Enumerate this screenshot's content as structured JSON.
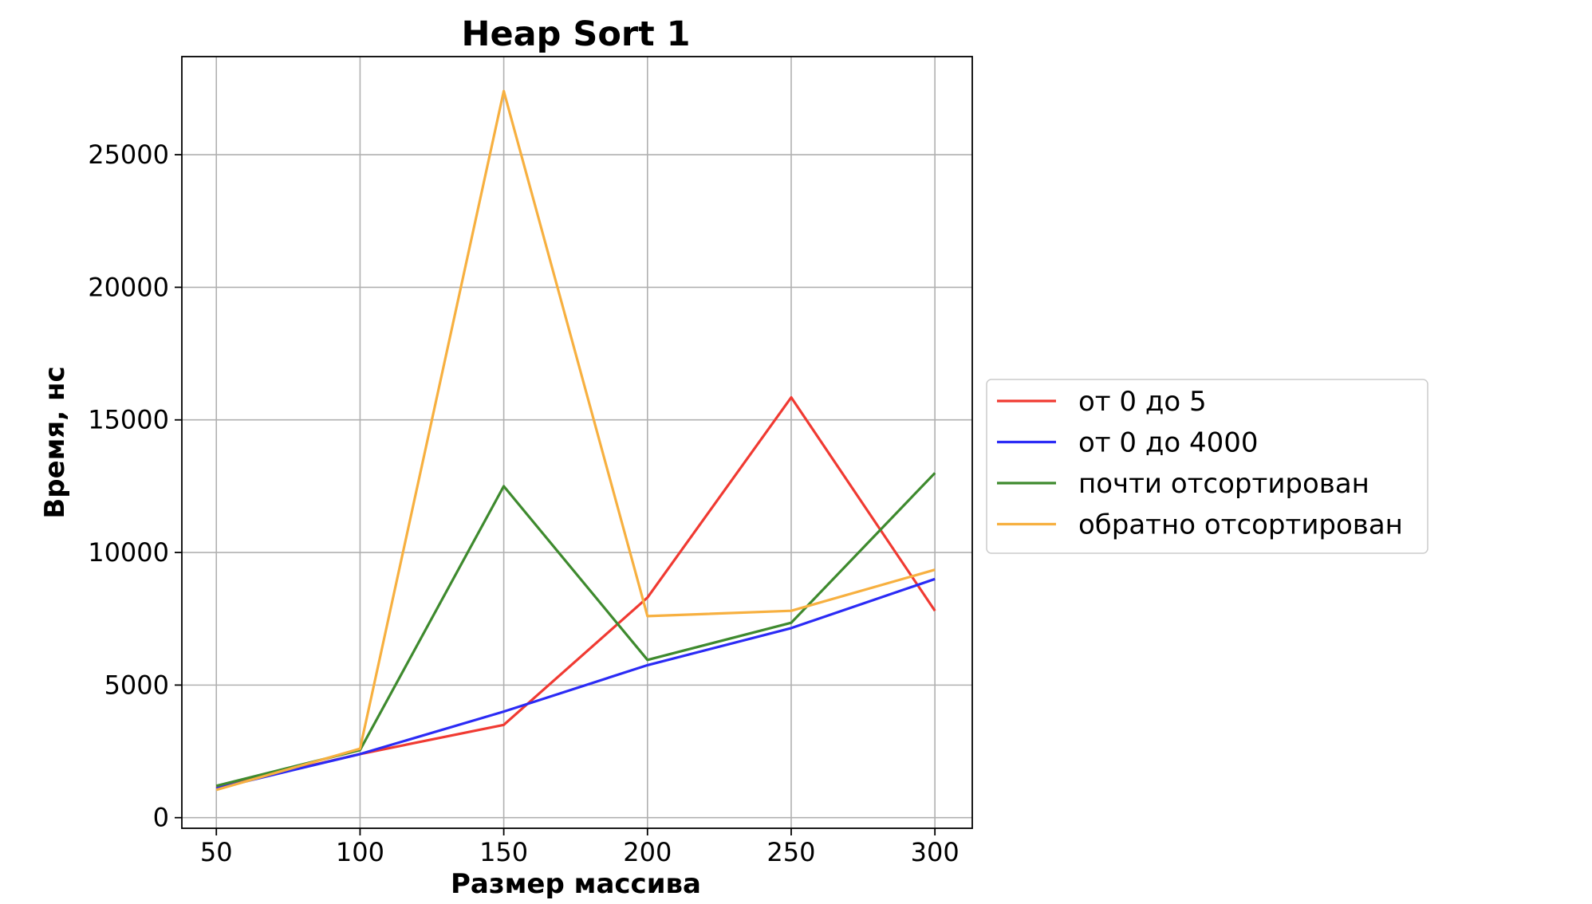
{
  "chart_data": {
    "type": "line",
    "title": "Heap Sort 1",
    "xlabel": "Размер массива",
    "ylabel": "Время, нс",
    "x": [
      50,
      100,
      150,
      200,
      250,
      300
    ],
    "xticks": [
      "50",
      "100",
      "150",
      "200",
      "250",
      "300"
    ],
    "yticks": [
      "0",
      "5000",
      "10000",
      "15000",
      "20000",
      "25000"
    ],
    "ytick_values": [
      0,
      5000,
      10000,
      15000,
      20000,
      25000
    ],
    "xlim": [
      38,
      313
    ],
    "ylim": [
      -400,
      28700
    ],
    "grid": true,
    "legend_position": "right, outside plot area",
    "series": [
      {
        "name": "от 0 до 5",
        "color": "#f03a32",
        "values": [
          1150,
          2400,
          3500,
          8300,
          15850,
          7800
        ]
      },
      {
        "name": "от 0 до 4000",
        "color": "#2b2bf5",
        "values": [
          1100,
          2400,
          4000,
          5750,
          7150,
          9000
        ]
      },
      {
        "name": "почти отсортирован",
        "color": "#3e8a2e",
        "values": [
          1200,
          2550,
          12500,
          5950,
          7350,
          13000
        ]
      },
      {
        "name": "обратно отсортирован",
        "color": "#f7b040",
        "values": [
          1050,
          2600,
          27400,
          7600,
          7800,
          9350
        ]
      }
    ]
  }
}
